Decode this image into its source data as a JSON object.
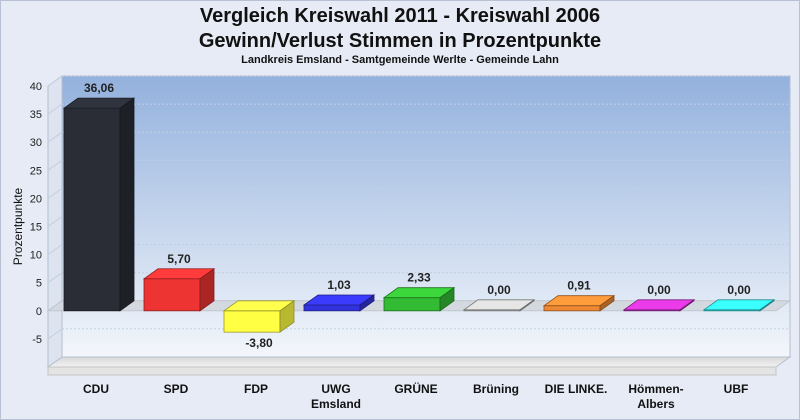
{
  "chart_data": {
    "type": "bar",
    "title_line1": "Vergleich Kreiswahl 2011 - Kreiswahl 2006",
    "title_line2": "Gewinn/Verlust Stimmen in Prozentpunkte",
    "subtitle": "Landkreis Emsland - Samtgemeinde Werlte - Gemeinde Lahn",
    "ylabel": "Prozentpunkte",
    "ylim": [
      -10,
      40
    ],
    "yticks": [
      -5,
      0,
      5,
      10,
      15,
      20,
      25,
      30,
      35,
      40
    ],
    "grid": true,
    "categories": [
      [
        "CDU"
      ],
      [
        "SPD"
      ],
      [
        "FDP"
      ],
      [
        "UWG",
        "Emsland"
      ],
      [
        "GRÜNE"
      ],
      [
        "Brüning"
      ],
      [
        "DIE LINKE."
      ],
      [
        "Hömmen-",
        "Albers"
      ],
      [
        "UBF"
      ]
    ],
    "values": [
      36.06,
      5.7,
      -3.8,
      1.03,
      2.33,
      0.0,
      0.91,
      0.0,
      0.0
    ],
    "value_labels": [
      "36,06",
      "5,70",
      "-3,80",
      "1,03",
      "2,33",
      "0,00",
      "0,91",
      "0,00",
      "0,00"
    ],
    "colors": [
      "#2a2d36",
      "#ee3333",
      "#ffff44",
      "#3333dd",
      "#33bb33",
      "#c8c8c8",
      "#ee8833",
      "#cc33cc",
      "#33eeee"
    ]
  }
}
